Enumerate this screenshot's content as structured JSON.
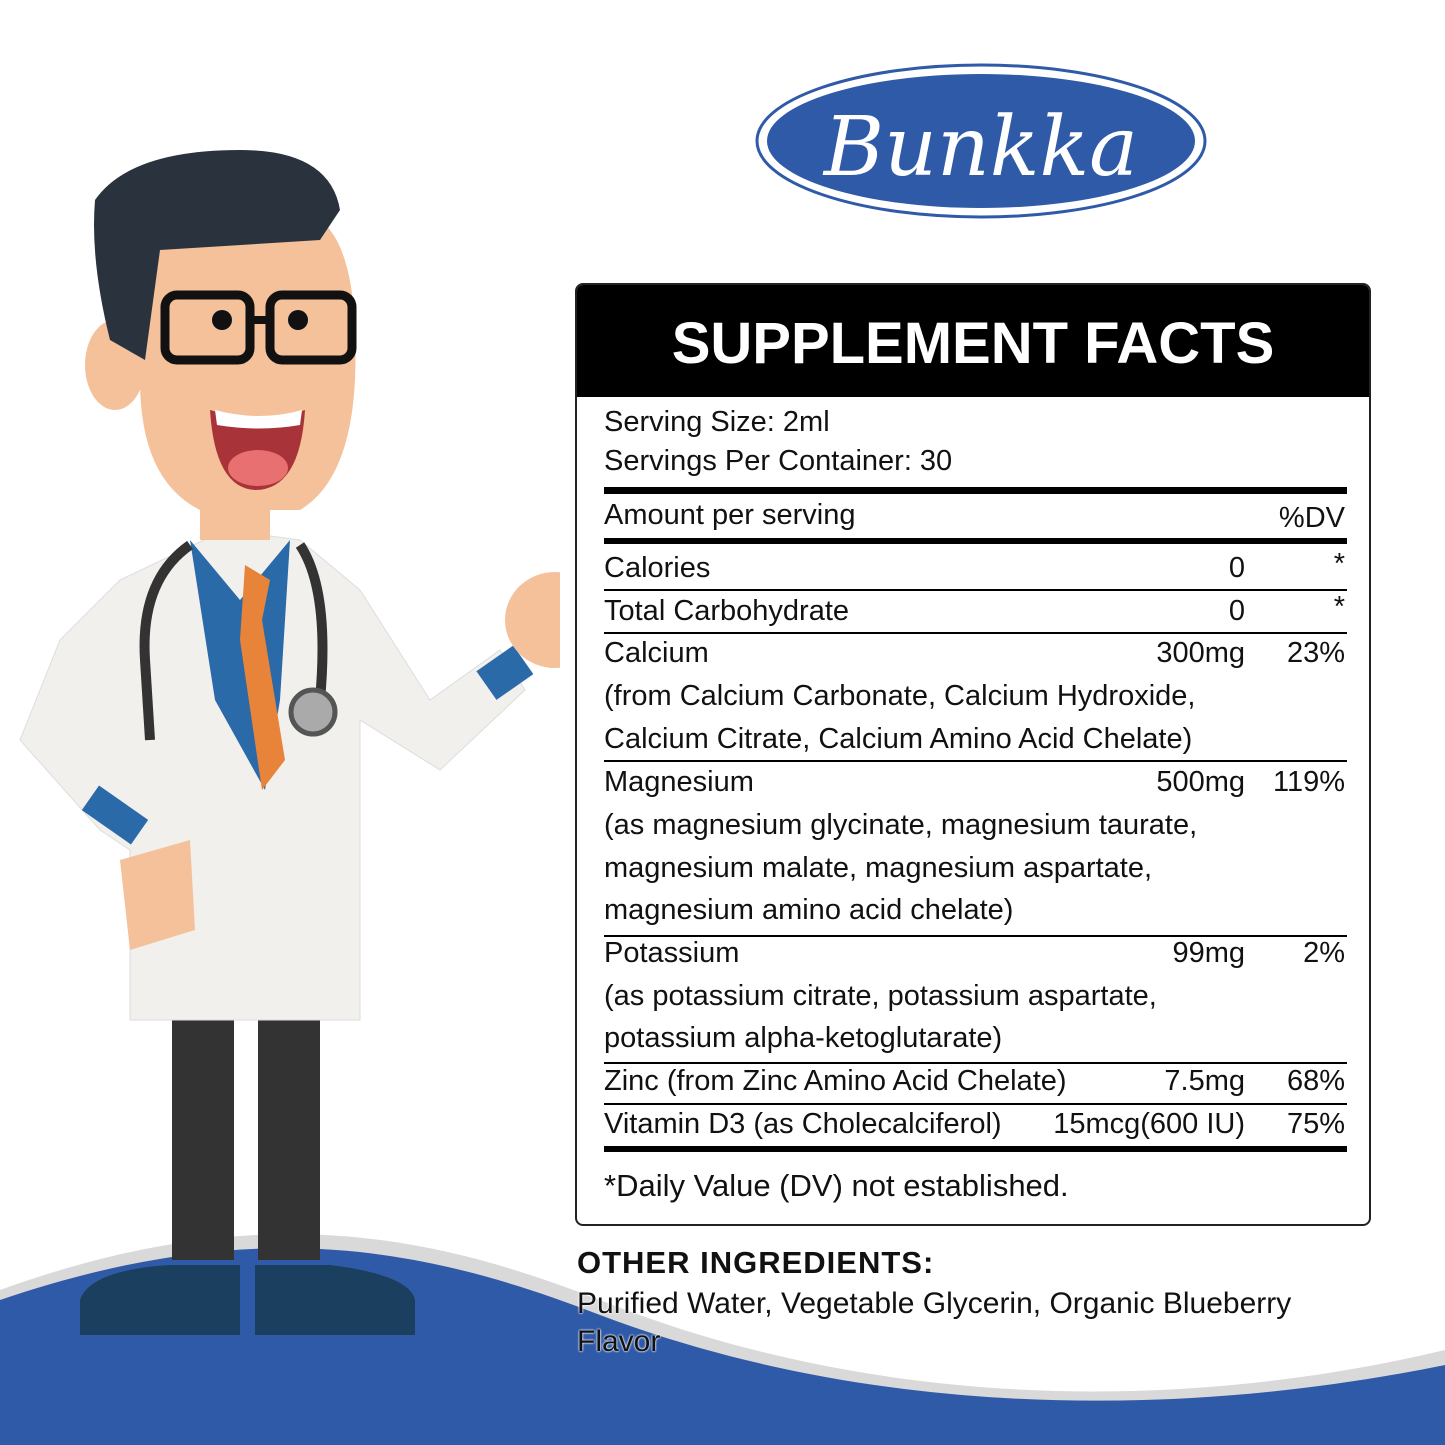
{
  "brand": {
    "logo_text": "Bunkka",
    "color": "#2f5aa8"
  },
  "facts": {
    "title": "SUPPLEMENT FACTS",
    "serving_size": "Serving Size: 2ml",
    "servings_per_container": "Servings Per Container: 30",
    "amount_header": "Amount per serving",
    "dv_header": "%DV",
    "rows": [
      {
        "name": "Calories",
        "amount": "0",
        "dv": "*"
      },
      {
        "name": "Total Carbohydrate",
        "amount": "0",
        "dv": "*"
      },
      {
        "name": "Calcium",
        "amount": "300mg",
        "dv": "23%",
        "detail": [
          "(from Calcium Carbonate, Calcium Hydroxide,",
          "Calcium Citrate, Calcium Amino Acid Chelate)"
        ]
      },
      {
        "name": "Magnesium",
        "amount": "500mg",
        "dv": "119%",
        "detail": [
          "(as magnesium glycinate, magnesium taurate,",
          "magnesium malate, magnesium aspartate,",
          "magnesium amino acid chelate)"
        ]
      },
      {
        "name": "Potassium",
        "amount": "99mg",
        "dv": "2%",
        "detail": [
          "(as potassium citrate, potassium aspartate,",
          "potassium alpha-ketoglutarate)"
        ]
      },
      {
        "name": "Zinc (from Zinc Amino Acid Chelate)",
        "amount": "7.5mg",
        "dv": "68%"
      },
      {
        "name": "Vitamin D3 (as Cholecalciferol)",
        "amount": "15mcg(600 IU)",
        "dv": "75%"
      }
    ],
    "footnote": "*Daily Value (DV) not established."
  },
  "other_ingredients": {
    "heading": "OTHER INGREDIENTS:",
    "text": "Purified Water, Vegetable Glycerin, Organic Blueberry Flavor"
  },
  "illustration": {
    "subject": "cartoon doctor with pointer",
    "accent_blue": "#2f5aa8"
  }
}
